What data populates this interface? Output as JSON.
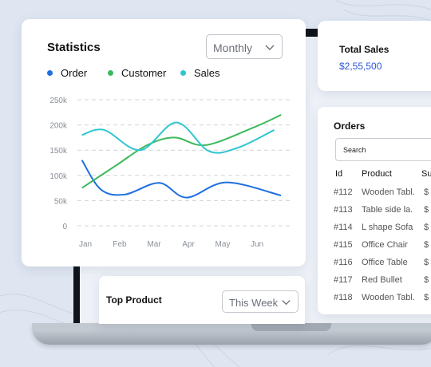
{
  "statistics": {
    "title": "Statistics",
    "period": "Monthly",
    "legend": [
      {
        "label": "Order",
        "color": "#1f6fe0"
      },
      {
        "label": "Customer",
        "color": "#3cb95b"
      },
      {
        "label": "Sales",
        "color": "#2ec6cf"
      }
    ]
  },
  "chart_data": {
    "type": "line",
    "categories": [
      "Jan",
      "Feb",
      "Mar",
      "Apr",
      "May",
      "Jun"
    ],
    "y_ticks": [
      "250k",
      "200k",
      "150k",
      "100k",
      "50k",
      "0"
    ],
    "ylim": [
      0,
      250000
    ],
    "grid": true,
    "legend_position": "top-left",
    "series": [
      {
        "name": "Order",
        "color": "#1f6fe0",
        "values": [
          130000,
          72000,
          62000,
          85000,
          56000,
          86000,
          60000
        ],
        "x": [
          -0.1,
          0.45,
          1.15,
          2.15,
          2.95,
          4.1,
          5.7
        ]
      },
      {
        "name": "Customer",
        "color": "#3cb95b",
        "values": [
          75000,
          120000,
          160000,
          175000,
          160000,
          195000,
          220000
        ],
        "x": [
          -0.1,
          0.9,
          1.8,
          2.6,
          3.5,
          4.9,
          5.7
        ]
      },
      {
        "name": "Sales",
        "color": "#2ec6cf",
        "values": [
          180000,
          190000,
          150000,
          205000,
          148000,
          155000,
          190000
        ],
        "x": [
          -0.1,
          0.55,
          1.6,
          2.65,
          3.6,
          4.45,
          5.5
        ]
      }
    ]
  },
  "total_sales": {
    "title": "Total Sales",
    "value": "$2,55,500"
  },
  "orders": {
    "title": "Orders",
    "search_placeholder": "Search",
    "columns": [
      "Id",
      "Product",
      "Su"
    ],
    "rows": [
      {
        "id": "#112",
        "product": "Wooden Tabl.",
        "amount": "$"
      },
      {
        "id": "#113",
        "product": "Table side la.",
        "amount": "$"
      },
      {
        "id": "#114",
        "product": "L shape Sofa",
        "amount": "$"
      },
      {
        "id": "#115",
        "product": "Office Chair",
        "amount": "$"
      },
      {
        "id": "#116",
        "product": "Office Table",
        "amount": "$"
      },
      {
        "id": "#117",
        "product": "Red Bullet",
        "amount": "$"
      },
      {
        "id": "#118",
        "product": "Wooden Tabl.",
        "amount": "$"
      }
    ]
  },
  "top_product": {
    "title": "Top Product",
    "period": "This Week"
  }
}
